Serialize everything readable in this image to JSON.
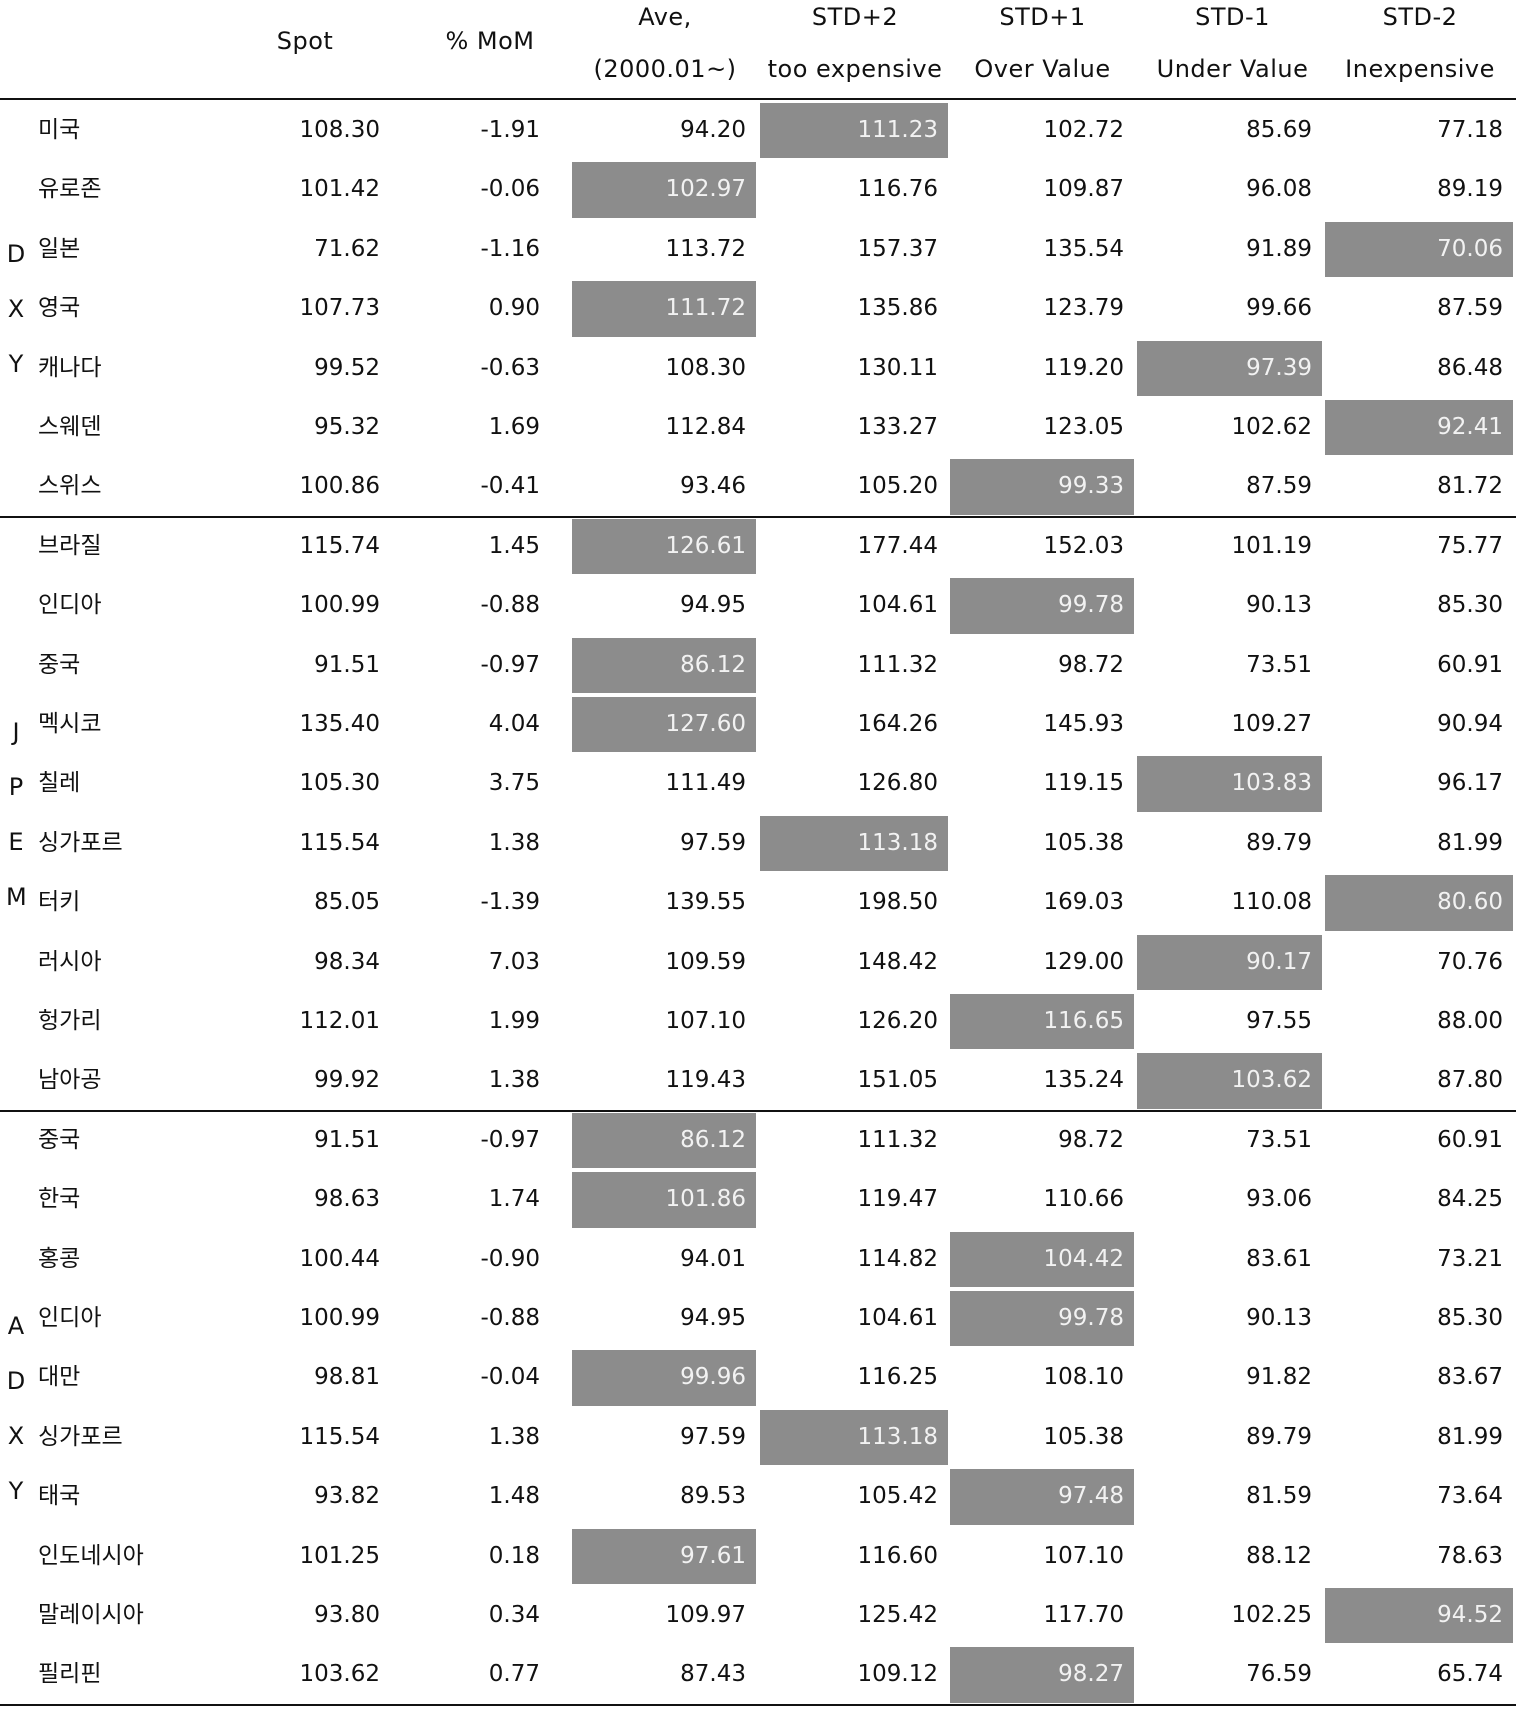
{
  "header": {
    "spot": "Spot",
    "mom": "% MoM",
    "ave_line1": "Ave,",
    "ave_line2": "(2000.01~)",
    "std2p_line1": "STD+2",
    "std2p_line2": "too expensive",
    "std1p_line1": "STD+1",
    "std1p_line2": "Over Value",
    "std1m_line1": "STD-1",
    "std1m_line2": "Under Value",
    "std2m_line1": "STD-2",
    "std2m_line2": "Inexpensive"
  },
  "groups": [
    {
      "label": "DXY",
      "letters": [
        "D",
        "X",
        "Y"
      ],
      "rows": [
        {
          "name": "미국",
          "values": [
            "108.30",
            "-1.91",
            "94.20",
            "111.23",
            "102.72",
            "85.69",
            "77.18"
          ],
          "highlight": 3
        },
        {
          "name": "유로존",
          "values": [
            "101.42",
            "-0.06",
            "102.97",
            "116.76",
            "109.87",
            "96.08",
            "89.19"
          ],
          "highlight": 2
        },
        {
          "name": "일본",
          "values": [
            "71.62",
            "-1.16",
            "113.72",
            "157.37",
            "135.54",
            "91.89",
            "70.06"
          ],
          "highlight": 6
        },
        {
          "name": "영국",
          "values": [
            "107.73",
            "0.90",
            "111.72",
            "135.86",
            "123.79",
            "99.66",
            "87.59"
          ],
          "highlight": 2
        },
        {
          "name": "캐나다",
          "values": [
            "99.52",
            "-0.63",
            "108.30",
            "130.11",
            "119.20",
            "97.39",
            "86.48"
          ],
          "highlight": 5
        },
        {
          "name": "스웨덴",
          "values": [
            "95.32",
            "1.69",
            "112.84",
            "133.27",
            "123.05",
            "102.62",
            "92.41"
          ],
          "highlight": 6
        },
        {
          "name": "스위스",
          "values": [
            "100.86",
            "-0.41",
            "93.46",
            "105.20",
            "99.33",
            "87.59",
            "81.72"
          ],
          "highlight": 4
        }
      ]
    },
    {
      "label": "JPEM",
      "letters": [
        "J",
        "P",
        "E",
        "M"
      ],
      "rows": [
        {
          "name": "브라질",
          "values": [
            "115.74",
            "1.45",
            "126.61",
            "177.44",
            "152.03",
            "101.19",
            "75.77"
          ],
          "highlight": 2
        },
        {
          "name": "인디아",
          "values": [
            "100.99",
            "-0.88",
            "94.95",
            "104.61",
            "99.78",
            "90.13",
            "85.30"
          ],
          "highlight": 4
        },
        {
          "name": "중국",
          "values": [
            "91.51",
            "-0.97",
            "86.12",
            "111.32",
            "98.72",
            "73.51",
            "60.91"
          ],
          "highlight": 2
        },
        {
          "name": "멕시코",
          "values": [
            "135.40",
            "4.04",
            "127.60",
            "164.26",
            "145.93",
            "109.27",
            "90.94"
          ],
          "highlight": 2
        },
        {
          "name": "칠레",
          "values": [
            "105.30",
            "3.75",
            "111.49",
            "126.80",
            "119.15",
            "103.83",
            "96.17"
          ],
          "highlight": 5
        },
        {
          "name": "싱가포르",
          "values": [
            "115.54",
            "1.38",
            "97.59",
            "113.18",
            "105.38",
            "89.79",
            "81.99"
          ],
          "highlight": 3
        },
        {
          "name": "터키",
          "values": [
            "85.05",
            "-1.39",
            "139.55",
            "198.50",
            "169.03",
            "110.08",
            "80.60"
          ],
          "highlight": 6
        },
        {
          "name": "러시아",
          "values": [
            "98.34",
            "7.03",
            "109.59",
            "148.42",
            "129.00",
            "90.17",
            "70.76"
          ],
          "highlight": 5
        },
        {
          "name": "헝가리",
          "values": [
            "112.01",
            "1.99",
            "107.10",
            "126.20",
            "116.65",
            "97.55",
            "88.00"
          ],
          "highlight": 4
        },
        {
          "name": "남아공",
          "values": [
            "99.92",
            "1.38",
            "119.43",
            "151.05",
            "135.24",
            "103.62",
            "87.80"
          ],
          "highlight": 5
        }
      ]
    },
    {
      "label": "ADXY",
      "letters": [
        "A",
        "D",
        "X",
        "Y"
      ],
      "rows": [
        {
          "name": "중국",
          "values": [
            "91.51",
            "-0.97",
            "86.12",
            "111.32",
            "98.72",
            "73.51",
            "60.91"
          ],
          "highlight": 2
        },
        {
          "name": "한국",
          "values": [
            "98.63",
            "1.74",
            "101.86",
            "119.47",
            "110.66",
            "93.06",
            "84.25"
          ],
          "highlight": 2
        },
        {
          "name": "홍콩",
          "values": [
            "100.44",
            "-0.90",
            "94.01",
            "114.82",
            "104.42",
            "83.61",
            "73.21"
          ],
          "highlight": 4
        },
        {
          "name": "인디아",
          "values": [
            "100.99",
            "-0.88",
            "94.95",
            "104.61",
            "99.78",
            "90.13",
            "85.30"
          ],
          "highlight": 4
        },
        {
          "name": "대만",
          "values": [
            "98.81",
            "-0.04",
            "99.96",
            "116.25",
            "108.10",
            "91.82",
            "83.67"
          ],
          "highlight": 2
        },
        {
          "name": "싱가포르",
          "values": [
            "115.54",
            "1.38",
            "97.59",
            "113.18",
            "105.38",
            "89.79",
            "81.99"
          ],
          "highlight": 3
        },
        {
          "name": "태국",
          "values": [
            "93.82",
            "1.48",
            "89.53",
            "105.42",
            "97.48",
            "81.59",
            "73.64"
          ],
          "highlight": 4
        },
        {
          "name": "인도네시아",
          "values": [
            "101.25",
            "0.18",
            "97.61",
            "116.60",
            "107.10",
            "88.12",
            "78.63"
          ],
          "highlight": 2
        },
        {
          "name": "말레이시아",
          "values": [
            "93.80",
            "0.34",
            "109.97",
            "125.42",
            "117.70",
            "102.25",
            "94.52"
          ],
          "highlight": 6
        },
        {
          "name": "필리핀",
          "values": [
            "103.62",
            "0.77",
            "87.43",
            "109.12",
            "98.27",
            "76.59",
            "65.74"
          ],
          "highlight": 4
        }
      ]
    }
  ]
}
